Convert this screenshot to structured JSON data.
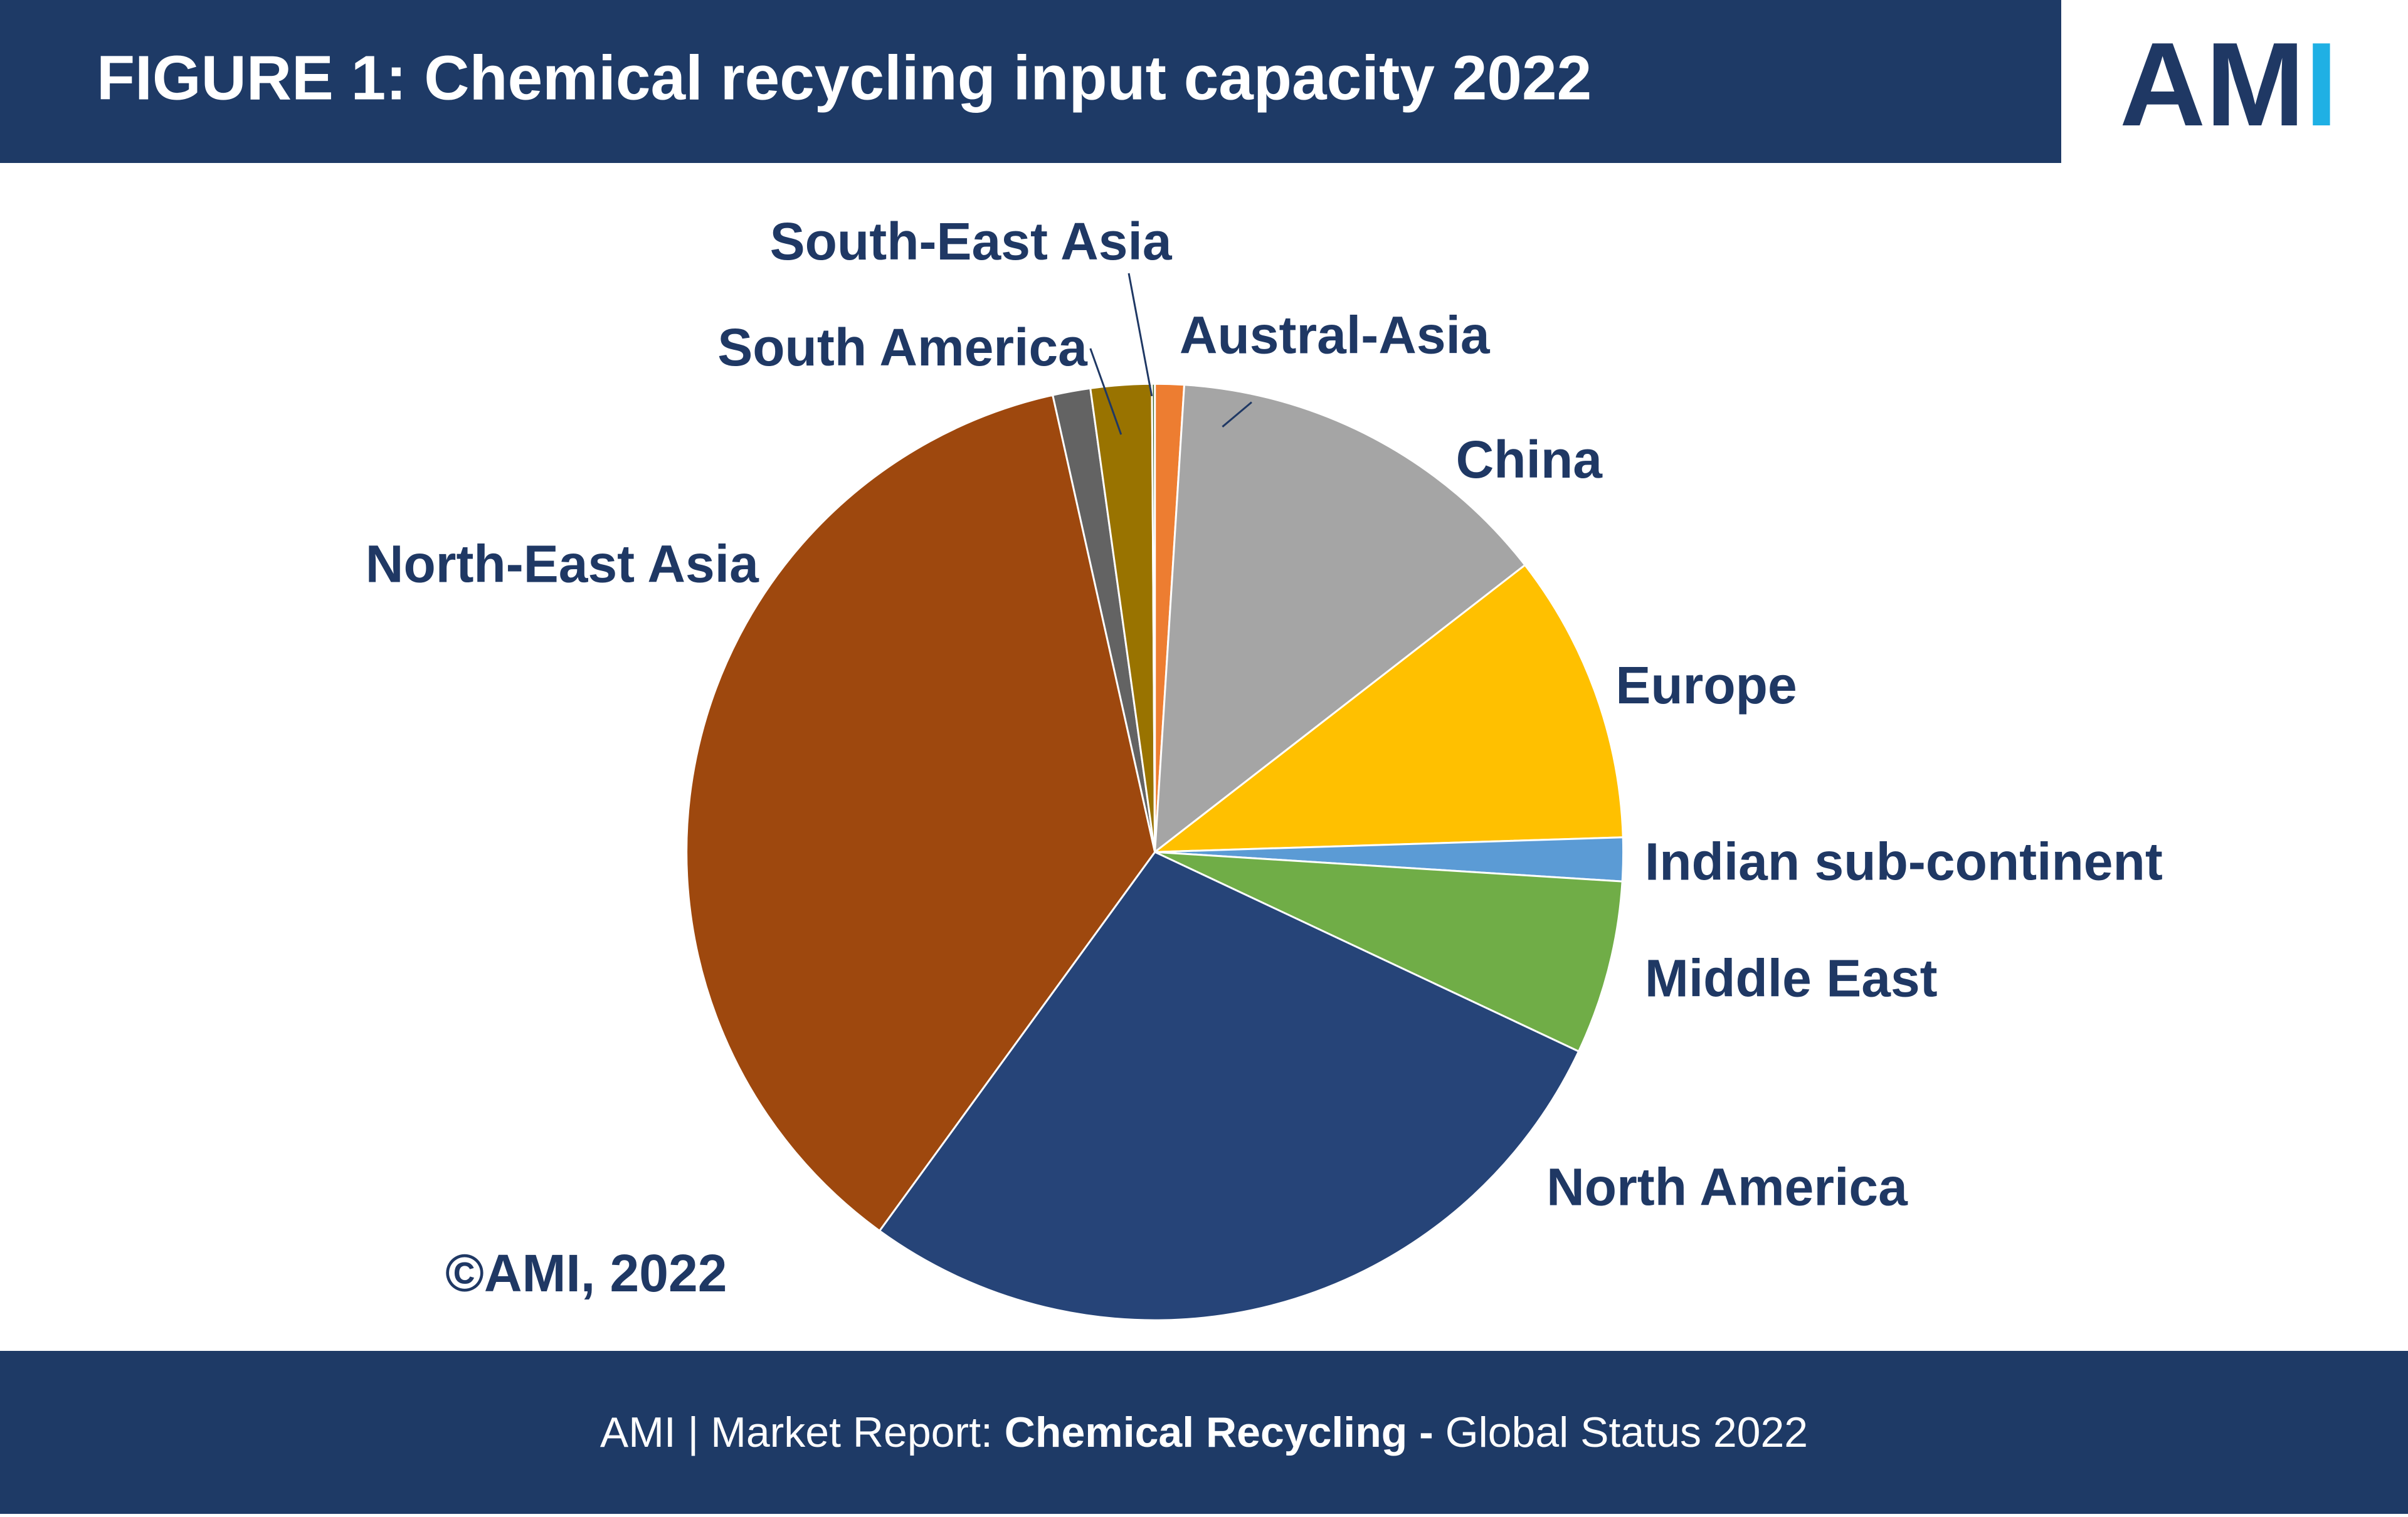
{
  "header": {
    "logo_main": "AM",
    "logo_accent": "I"
  },
  "footer": {
    "part1": "AMI  |  Market Report: ",
    "part2": "Chemical Recycling -",
    "part3": " Global Status 2022"
  },
  "chart_data": {
    "type": "pie",
    "title": "FIGURE 1: Chemical recycling input capacity 2022",
    "categories": [
      "Austral-Asia",
      "China",
      "Europe",
      "Indian sub-continent",
      "Middle East",
      "North America",
      "North-East Asia",
      null,
      "South America",
      "South-East Asia"
    ],
    "values": [
      1,
      13.5,
      10,
      1.5,
      6,
      28,
      36.5,
      1.3,
      2.1,
      0.1
    ],
    "colors": [
      "#ed7d31",
      "#a5a5a5",
      "#ffc000",
      "#5b9bd5",
      "#70ad47",
      "#264478",
      "#9e480e",
      "#636363",
      "#997300",
      "#43682b"
    ],
    "source": "©AMI, 2022"
  }
}
